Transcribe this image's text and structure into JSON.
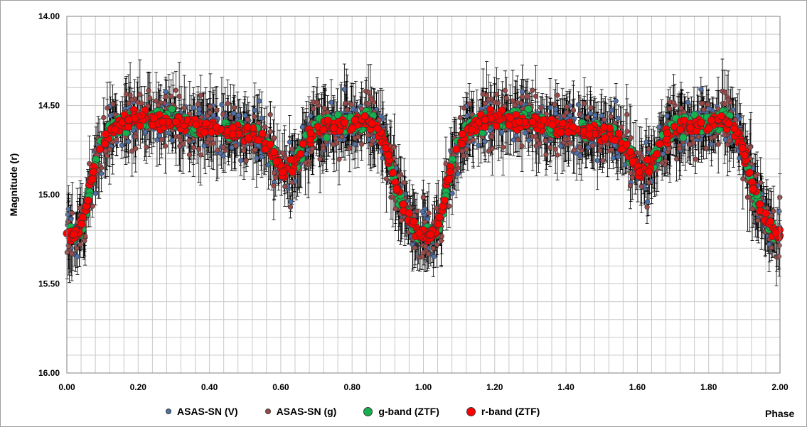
{
  "chart_data": {
    "type": "scatter",
    "xlabel": "Phase",
    "ylabel": "Magnitude (r)",
    "xlim": [
      0,
      2
    ],
    "ylim": [
      16,
      14
    ],
    "y_inverted": true,
    "grid": true,
    "legend_position": "bottom",
    "x_ticks": [
      "0.00",
      "0.20",
      "0.40",
      "0.60",
      "0.80",
      "1.00",
      "1.20",
      "1.40",
      "1.60",
      "1.80",
      "2.00"
    ],
    "y_ticks": [
      "14.00",
      "14.50",
      "15.00",
      "15.50",
      "16.00"
    ],
    "x_tick_values": [
      0,
      0.2,
      0.4,
      0.6,
      0.8,
      1.0,
      1.2,
      1.4,
      1.6,
      1.8,
      2.0
    ],
    "y_tick_values": [
      14.0,
      14.5,
      15.0,
      15.5,
      16.0
    ],
    "light_curve_phase": [
      0.0,
      0.01,
      0.02,
      0.03,
      0.04,
      0.05,
      0.06,
      0.07,
      0.08,
      0.1,
      0.12,
      0.15,
      0.18,
      0.22,
      0.26,
      0.3,
      0.34,
      0.38,
      0.42,
      0.46,
      0.5,
      0.54,
      0.57,
      0.59,
      0.61,
      0.63,
      0.65,
      0.67,
      0.7,
      0.74,
      0.78,
      0.82,
      0.85,
      0.87,
      0.89,
      0.91,
      0.93,
      0.95,
      0.97,
      0.99,
      1.0
    ],
    "light_curve_mag": [
      15.22,
      15.24,
      15.22,
      15.2,
      15.18,
      15.12,
      15.0,
      14.9,
      14.82,
      14.72,
      14.65,
      14.6,
      14.58,
      14.57,
      14.59,
      14.58,
      14.62,
      14.63,
      14.64,
      14.64,
      14.64,
      14.68,
      14.75,
      14.82,
      14.87,
      14.85,
      14.78,
      14.68,
      14.62,
      14.61,
      14.61,
      14.6,
      14.58,
      14.62,
      14.7,
      14.86,
      15.0,
      15.1,
      15.18,
      15.22,
      15.22
    ],
    "series": [
      {
        "name": "ASAS-SN (V)",
        "color": "#4f6fa8",
        "marker_size": "small",
        "scatter": 0.1,
        "error_bar": 0.12,
        "count": 420
      },
      {
        "name": "ASAS-SN (g)",
        "color": "#9b4a48",
        "marker_size": "small",
        "scatter": 0.12,
        "error_bar": 0.14,
        "count": 420
      },
      {
        "name": "g-band (ZTF)",
        "color": "#16b04e",
        "marker_size": "large",
        "scatter": 0.035,
        "error_bar": 0,
        "count": 300
      },
      {
        "name": "r-band (ZTF)",
        "color": "#ff0000",
        "marker_size": "large",
        "scatter": 0.03,
        "error_bar": 0,
        "count": 330
      }
    ]
  }
}
